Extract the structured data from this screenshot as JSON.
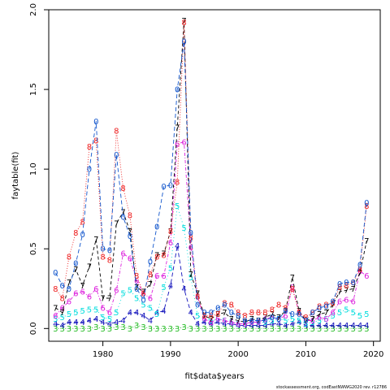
{
  "chart_data": {
    "type": "line",
    "title": "",
    "xlabel": "fit$data$years",
    "ylabel": "faytable(fit)",
    "xlim": [
      1972,
      2021
    ],
    "ylim": [
      -0.08,
      2.0
    ],
    "x_ticks": [
      1980,
      1990,
      2000,
      2010,
      2020
    ],
    "y_ticks": [
      0.0,
      0.5,
      1.0,
      1.5,
      2.0
    ],
    "footer": "stockassessment.org, codEastNWWG2020 rev. r12786",
    "x": [
      1973,
      1974,
      1975,
      1976,
      1977,
      1978,
      1979,
      1980,
      1981,
      1982,
      1983,
      1984,
      1985,
      1986,
      1987,
      1988,
      1989,
      1990,
      1991,
      1992,
      1993,
      1994,
      1995,
      1996,
      1997,
      1998,
      1999,
      2000,
      2001,
      2002,
      2003,
      2004,
      2005,
      2006,
      2007,
      2008,
      2009,
      2010,
      2011,
      2012,
      2013,
      2014,
      2015,
      2016,
      2017,
      2018,
      2019
    ],
    "series": [
      {
        "name": "3",
        "color": "#22bb22",
        "dash": "1,2",
        "values": [
          0.0,
          0.0,
          0.0,
          0.0,
          0.0,
          0.0,
          0.01,
          0.0,
          0.0,
          0.01,
          0.01,
          0.0,
          0.02,
          0.01,
          0.0,
          0.0,
          0.0,
          0.0,
          0.0,
          0.01,
          0.0,
          0.0,
          0.0,
          0.0,
          0.0,
          0.0,
          0.0,
          0.0,
          0.0,
          0.0,
          0.0,
          0.0,
          0.0,
          0.0,
          0.0,
          0.0,
          0.0,
          0.0,
          0.0,
          0.0,
          0.0,
          0.0,
          0.0,
          0.0,
          0.0,
          0.0,
          0.0
        ]
      },
      {
        "name": "4",
        "color": "#1111bb",
        "dash": "5,3",
        "values": [
          0.03,
          0.02,
          0.04,
          0.04,
          0.04,
          0.05,
          0.06,
          0.04,
          0.03,
          0.04,
          0.05,
          0.1,
          0.1,
          0.08,
          0.05,
          0.1,
          0.11,
          0.27,
          0.52,
          0.25,
          0.1,
          0.03,
          0.04,
          0.03,
          0.04,
          0.03,
          0.03,
          0.02,
          0.02,
          0.02,
          0.02,
          0.02,
          0.03,
          0.03,
          0.02,
          0.03,
          0.04,
          0.02,
          0.02,
          0.02,
          0.02,
          0.02,
          0.02,
          0.02,
          0.02,
          0.02,
          0.02
        ]
      },
      {
        "name": "5",
        "color": "#00dddd",
        "dash": "1,3",
        "values": [
          0.06,
          0.07,
          0.09,
          0.1,
          0.11,
          0.12,
          0.12,
          0.07,
          0.06,
          0.1,
          0.22,
          0.24,
          0.19,
          0.15,
          0.13,
          0.09,
          0.26,
          0.38,
          0.77,
          0.63,
          0.32,
          0.08,
          0.06,
          0.05,
          0.06,
          0.05,
          0.04,
          0.03,
          0.03,
          0.04,
          0.04,
          0.04,
          0.05,
          0.06,
          0.05,
          0.06,
          0.05,
          0.03,
          0.04,
          0.05,
          0.06,
          0.08,
          0.1,
          0.12,
          0.1,
          0.08,
          0.09
        ]
      },
      {
        "name": "6",
        "color": "#dd22dd",
        "dash": "4,2,1,2",
        "values": [
          0.08,
          0.13,
          0.17,
          0.22,
          0.23,
          0.2,
          0.25,
          0.13,
          0.1,
          0.24,
          0.47,
          0.44,
          0.3,
          0.22,
          0.19,
          0.33,
          0.33,
          0.54,
          1.16,
          1.17,
          0.51,
          0.2,
          0.06,
          0.04,
          0.06,
          0.05,
          0.04,
          0.03,
          0.03,
          0.04,
          0.04,
          0.06,
          0.07,
          0.06,
          0.08,
          0.26,
          0.1,
          0.05,
          0.05,
          0.07,
          0.06,
          0.1,
          0.17,
          0.18,
          0.17,
          0.36,
          0.33
        ]
      },
      {
        "name": "7",
        "color": "#000000",
        "dash": "4,3",
        "values": [
          0.13,
          0.1,
          0.29,
          0.37,
          0.27,
          0.39,
          0.56,
          0.19,
          0.19,
          0.66,
          0.73,
          0.61,
          0.26,
          0.23,
          0.28,
          0.46,
          0.47,
          0.61,
          1.26,
          1.93,
          0.34,
          0.22,
          0.08,
          0.06,
          0.09,
          0.1,
          0.06,
          0.05,
          0.04,
          0.06,
          0.05,
          0.07,
          0.09,
          0.07,
          0.11,
          0.32,
          0.11,
          0.05,
          0.06,
          0.09,
          0.1,
          0.15,
          0.23,
          0.24,
          0.25,
          0.35,
          0.55
        ]
      },
      {
        "name": "8",
        "color": "#ee2222",
        "dash": "1,2",
        "values": [
          0.25,
          0.19,
          0.45,
          0.6,
          0.67,
          1.14,
          1.18,
          0.45,
          0.43,
          1.24,
          0.88,
          0.71,
          0.33,
          0.22,
          0.34,
          0.45,
          0.46,
          0.61,
          0.92,
          1.92,
          0.57,
          0.2,
          0.08,
          0.08,
          0.09,
          0.16,
          0.15,
          0.1,
          0.08,
          0.1,
          0.1,
          0.1,
          0.12,
          0.15,
          0.13,
          0.25,
          0.1,
          0.07,
          0.1,
          0.14,
          0.15,
          0.16,
          0.26,
          0.27,
          0.29,
          0.37,
          0.77
        ]
      },
      {
        "name": "0",
        "color": "#1155cc",
        "dash": "5,3",
        "values": [
          0.35,
          0.27,
          0.25,
          0.41,
          0.59,
          1.0,
          1.3,
          0.5,
          0.49,
          1.09,
          0.7,
          0.58,
          0.25,
          0.18,
          0.42,
          0.64,
          0.89,
          0.9,
          1.5,
          1.8,
          0.6,
          0.15,
          0.1,
          0.1,
          0.13,
          0.15,
          0.1,
          0.08,
          0.05,
          0.05,
          0.05,
          0.05,
          0.07,
          0.06,
          0.11,
          0.09,
          0.09,
          0.05,
          0.1,
          0.13,
          0.14,
          0.17,
          0.28,
          0.29,
          0.29,
          0.4,
          0.79
        ]
      }
    ]
  }
}
